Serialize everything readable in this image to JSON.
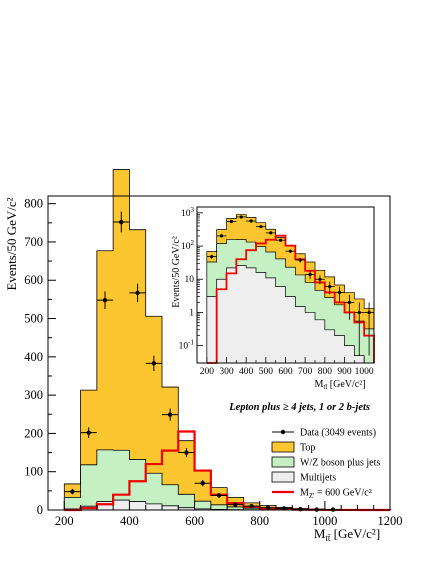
{
  "colors": {
    "top": "#fcc630",
    "wz": "#c4f0c4",
    "multijets": "#eeeeee",
    "zprime": "#ee0000",
    "data": "#000000"
  },
  "chart_data": [
    {
      "type": "bar",
      "xlabel": "M_{tt̄} [GeV/c²]",
      "xlabel_main": "M",
      "xlabel_sub": "tt̄",
      "xlabel_unit": "[GeV/c²]",
      "ylabel": "Events/50 GeV/c²",
      "xlim": [
        150,
        1200
      ],
      "ylim": [
        0,
        820
      ],
      "x_ticks": [
        200,
        400,
        600,
        800,
        1000,
        1200
      ],
      "y_ticks": [
        0,
        100,
        200,
        300,
        400,
        500,
        600,
        700,
        800
      ],
      "bin_edges": [
        200,
        250,
        300,
        350,
        400,
        450,
        500,
        550,
        600,
        650,
        700,
        750,
        800,
        850,
        900,
        950,
        1000,
        1050,
        1100,
        1150,
        1200
      ],
      "stack": [
        {
          "name": "Multijets",
          "values": [
            3,
            10,
            22,
            26,
            22,
            16,
            11,
            6,
            3,
            1.5,
            1,
            0.6,
            0.3,
            0.2,
            0.1,
            0.05,
            0.02,
            0.01,
            0.01,
            0.01
          ]
        },
        {
          "name": "W/Z boson plus jets",
          "values": [
            30,
            108,
            135,
            130,
            110,
            80,
            55,
            35,
            20,
            12,
            7,
            4,
            2.5,
            1.5,
            0.9,
            0.5,
            0.3,
            0.2,
            0.1,
            0.05
          ]
        },
        {
          "name": "Top",
          "values": [
            35,
            195,
            520,
            733,
            600,
            410,
            255,
            140,
            80,
            45,
            25,
            14,
            9,
            5,
            3,
            2,
            1,
            0.5,
            0.3,
            0.2
          ]
        }
      ],
      "zprime": {
        "name": "M_Z' = 600 GeV/c²",
        "values": [
          0,
          5,
          15,
          40,
          75,
          120,
          155,
          205,
          103,
          40,
          18,
          8,
          4,
          2,
          1,
          0.5,
          0.2,
          0.1,
          0.05,
          0.02
        ]
      },
      "data_points": {
        "x": [
          225,
          275,
          325,
          375,
          425,
          475,
          525,
          575,
          625,
          675,
          725,
          775,
          825,
          875,
          925,
          975,
          1025
        ],
        "y": [
          48,
          202,
          548,
          752,
          567,
          383,
          249,
          150,
          70,
          38,
          14,
          10,
          6,
          4,
          2,
          1,
          1
        ],
        "err": [
          7,
          14,
          23,
          27,
          24,
          20,
          16,
          12,
          8,
          6,
          4,
          3,
          2.5,
          2,
          1.4,
          1,
          1
        ]
      },
      "annotation": "Lepton plus ≥ 4 jets, 1 or 2 b-jets",
      "legend": [
        {
          "label": "Data (3049 events)",
          "kind": "data"
        },
        {
          "label": "Top",
          "kind": "fill",
          "color": "#fcc630"
        },
        {
          "label": "W/Z boson plus jets",
          "kind": "fill",
          "color": "#c4f0c4"
        },
        {
          "label": "Multijets",
          "kind": "fill",
          "color": "#eeeeee"
        },
        {
          "label": "M_{Z'} = 600 GeV/c²",
          "label_main": "M",
          "label_sub": "Z'",
          "label_rest": " = 600 GeV/c²",
          "kind": "line",
          "color": "#ee0000"
        }
      ]
    },
    {
      "type": "bar",
      "log_y": true,
      "xlabel_main": "M",
      "xlabel_sub": "tt̄",
      "xlabel_unit": "[GeV/c²]",
      "ylabel": "Events/50 GeV/c²",
      "xlim": [
        150,
        1050
      ],
      "ylim": [
        0.03,
        1500
      ],
      "x_ticks": [
        200,
        300,
        400,
        500,
        600,
        700,
        800,
        900,
        1000
      ],
      "y_ticks": [
        {
          "value": 0.1,
          "base": "10",
          "exp": "-1"
        },
        {
          "value": 1,
          "base": "1",
          "exp": ""
        },
        {
          "value": 10,
          "base": "10",
          "exp": ""
        },
        {
          "value": 100,
          "base": "10",
          "exp": "2"
        },
        {
          "value": 1000,
          "base": "10",
          "exp": "3"
        }
      ]
    }
  ]
}
